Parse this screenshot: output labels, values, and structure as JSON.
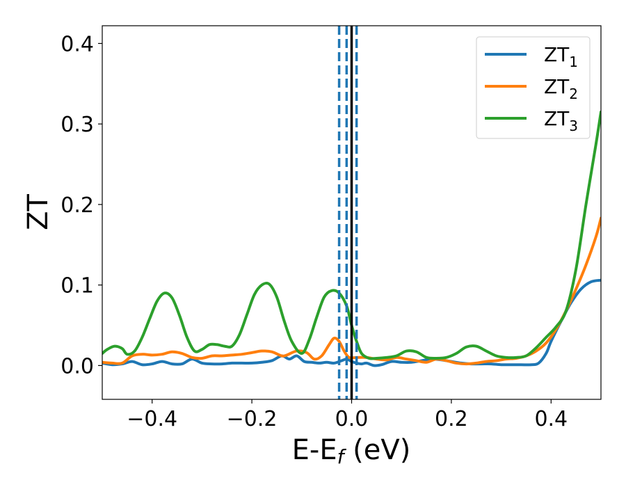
{
  "chart_data": {
    "type": "line",
    "title": "",
    "xlabel": {
      "base": "E-E",
      "sub": "f",
      "suffix": " (eV)"
    },
    "ylabel": "ZT",
    "xlim": [
      -0.5,
      0.5
    ],
    "ylim": [
      -0.042,
      0.422
    ],
    "xticks": [
      -0.4,
      -0.2,
      0.0,
      0.2,
      0.4
    ],
    "xtick_labels": [
      "−0.4",
      "−0.2",
      "0.0",
      "0.2",
      "0.4"
    ],
    "yticks": [
      0.0,
      0.1,
      0.2,
      0.3,
      0.4
    ],
    "ytick_labels": [
      "0.0",
      "0.1",
      "0.2",
      "0.3",
      "0.4"
    ],
    "grid": false,
    "legend_position": "top-right",
    "vlines": [
      {
        "x": -0.025,
        "style": "dashed",
        "color": "#1f77b4"
      },
      {
        "x": -0.01,
        "style": "dashed",
        "color": "#1f77b4"
      },
      {
        "x": 0.01,
        "style": "dashed",
        "color": "#1f77b4"
      },
      {
        "x": 0.0,
        "style": "solid",
        "color": "#000000"
      }
    ],
    "series": [
      {
        "name": "ZT",
        "sub": "1",
        "color": "#1f77b4",
        "points": [
          [
            -0.5,
            0.003
          ],
          [
            -0.48,
            0.001
          ],
          [
            -0.46,
            0.002
          ],
          [
            -0.44,
            0.005
          ],
          [
            -0.42,
            0.001
          ],
          [
            -0.4,
            0.002
          ],
          [
            -0.38,
            0.005
          ],
          [
            -0.36,
            0.002
          ],
          [
            -0.34,
            0.002
          ],
          [
            -0.32,
            0.008
          ],
          [
            -0.3,
            0.003
          ],
          [
            -0.28,
            0.002
          ],
          [
            -0.26,
            0.002
          ],
          [
            -0.24,
            0.003
          ],
          [
            -0.22,
            0.003
          ],
          [
            -0.2,
            0.003
          ],
          [
            -0.18,
            0.004
          ],
          [
            -0.16,
            0.006
          ],
          [
            -0.14,
            0.012
          ],
          [
            -0.125,
            0.008
          ],
          [
            -0.11,
            0.012
          ],
          [
            -0.095,
            0.005
          ],
          [
            -0.08,
            0.004
          ],
          [
            -0.065,
            0.003
          ],
          [
            -0.05,
            0.004
          ],
          [
            -0.035,
            0.003
          ],
          [
            -0.02,
            0.006
          ],
          [
            -0.01,
            0.008
          ],
          [
            0.0,
            0.005
          ],
          [
            0.01,
            0.003
          ],
          [
            0.02,
            0.002
          ],
          [
            0.03,
            0.003
          ],
          [
            0.045,
            0.0
          ],
          [
            0.06,
            0.001
          ],
          [
            0.08,
            0.005
          ],
          [
            0.1,
            0.004
          ],
          [
            0.12,
            0.004
          ],
          [
            0.14,
            0.006
          ],
          [
            0.16,
            0.008
          ],
          [
            0.18,
            0.007
          ],
          [
            0.2,
            0.005
          ],
          [
            0.22,
            0.003
          ],
          [
            0.24,
            0.002
          ],
          [
            0.26,
            0.002
          ],
          [
            0.28,
            0.002
          ],
          [
            0.3,
            0.001
          ],
          [
            0.32,
            0.001
          ],
          [
            0.34,
            0.001
          ],
          [
            0.36,
            0.001
          ],
          [
            0.375,
            0.003
          ],
          [
            0.39,
            0.015
          ],
          [
            0.4,
            0.03
          ],
          [
            0.42,
            0.055
          ],
          [
            0.44,
            0.078
          ],
          [
            0.46,
            0.095
          ],
          [
            0.48,
            0.104
          ],
          [
            0.5,
            0.106
          ]
        ]
      },
      {
        "name": "ZT",
        "sub": "2",
        "color": "#ff7f0e",
        "points": [
          [
            -0.5,
            0.004
          ],
          [
            -0.48,
            0.003
          ],
          [
            -0.46,
            0.003
          ],
          [
            -0.44,
            0.012
          ],
          [
            -0.42,
            0.014
          ],
          [
            -0.4,
            0.013
          ],
          [
            -0.38,
            0.014
          ],
          [
            -0.36,
            0.017
          ],
          [
            -0.34,
            0.015
          ],
          [
            -0.32,
            0.01
          ],
          [
            -0.3,
            0.009
          ],
          [
            -0.28,
            0.012
          ],
          [
            -0.26,
            0.012
          ],
          [
            -0.24,
            0.013
          ],
          [
            -0.22,
            0.014
          ],
          [
            -0.2,
            0.016
          ],
          [
            -0.18,
            0.018
          ],
          [
            -0.16,
            0.017
          ],
          [
            -0.14,
            0.012
          ],
          [
            -0.13,
            0.013
          ],
          [
            -0.11,
            0.018
          ],
          [
            -0.09,
            0.016
          ],
          [
            -0.075,
            0.008
          ],
          [
            -0.06,
            0.012
          ],
          [
            -0.045,
            0.026
          ],
          [
            -0.035,
            0.034
          ],
          [
            -0.025,
            0.03
          ],
          [
            -0.015,
            0.018
          ],
          [
            -0.005,
            0.01
          ],
          [
            0.01,
            0.01
          ],
          [
            0.03,
            0.01
          ],
          [
            0.05,
            0.008
          ],
          [
            0.07,
            0.007
          ],
          [
            0.09,
            0.01
          ],
          [
            0.11,
            0.008
          ],
          [
            0.13,
            0.006
          ],
          [
            0.15,
            0.004
          ],
          [
            0.17,
            0.008
          ],
          [
            0.19,
            0.006
          ],
          [
            0.21,
            0.003
          ],
          [
            0.23,
            0.002
          ],
          [
            0.25,
            0.003
          ],
          [
            0.27,
            0.005
          ],
          [
            0.29,
            0.006
          ],
          [
            0.31,
            0.008
          ],
          [
            0.33,
            0.009
          ],
          [
            0.35,
            0.012
          ],
          [
            0.37,
            0.018
          ],
          [
            0.39,
            0.028
          ],
          [
            0.41,
            0.045
          ],
          [
            0.43,
            0.068
          ],
          [
            0.45,
            0.095
          ],
          [
            0.47,
            0.125
          ],
          [
            0.49,
            0.16
          ],
          [
            0.5,
            0.183
          ]
        ]
      },
      {
        "name": "ZT",
        "sub": "3",
        "color": "#2ca02c",
        "points": [
          [
            -0.5,
            0.015
          ],
          [
            -0.49,
            0.02
          ],
          [
            -0.475,
            0.024
          ],
          [
            -0.46,
            0.021
          ],
          [
            -0.45,
            0.014
          ],
          [
            -0.435,
            0.018
          ],
          [
            -0.42,
            0.035
          ],
          [
            -0.405,
            0.058
          ],
          [
            -0.39,
            0.08
          ],
          [
            -0.375,
            0.09
          ],
          [
            -0.36,
            0.084
          ],
          [
            -0.345,
            0.062
          ],
          [
            -0.33,
            0.035
          ],
          [
            -0.315,
            0.018
          ],
          [
            -0.3,
            0.02
          ],
          [
            -0.285,
            0.026
          ],
          [
            -0.27,
            0.026
          ],
          [
            -0.255,
            0.024
          ],
          [
            -0.24,
            0.024
          ],
          [
            -0.225,
            0.038
          ],
          [
            -0.21,
            0.063
          ],
          [
            -0.195,
            0.088
          ],
          [
            -0.18,
            0.1
          ],
          [
            -0.165,
            0.101
          ],
          [
            -0.15,
            0.085
          ],
          [
            -0.135,
            0.055
          ],
          [
            -0.12,
            0.03
          ],
          [
            -0.1,
            0.015
          ],
          [
            -0.085,
            0.032
          ],
          [
            -0.07,
            0.06
          ],
          [
            -0.055,
            0.085
          ],
          [
            -0.04,
            0.093
          ],
          [
            -0.025,
            0.09
          ],
          [
            -0.01,
            0.074
          ],
          [
            0.0,
            0.05
          ],
          [
            0.01,
            0.03
          ],
          [
            0.02,
            0.015
          ],
          [
            0.035,
            0.009
          ],
          [
            0.05,
            0.009
          ],
          [
            0.07,
            0.01
          ],
          [
            0.09,
            0.012
          ],
          [
            0.11,
            0.018
          ],
          [
            0.13,
            0.017
          ],
          [
            0.15,
            0.01
          ],
          [
            0.17,
            0.009
          ],
          [
            0.19,
            0.01
          ],
          [
            0.21,
            0.015
          ],
          [
            0.23,
            0.023
          ],
          [
            0.25,
            0.024
          ],
          [
            0.27,
            0.018
          ],
          [
            0.29,
            0.012
          ],
          [
            0.31,
            0.01
          ],
          [
            0.33,
            0.01
          ],
          [
            0.35,
            0.012
          ],
          [
            0.37,
            0.022
          ],
          [
            0.39,
            0.035
          ],
          [
            0.41,
            0.048
          ],
          [
            0.43,
            0.068
          ],
          [
            0.45,
            0.12
          ],
          [
            0.47,
            0.2
          ],
          [
            0.49,
            0.275
          ],
          [
            0.5,
            0.315
          ]
        ]
      }
    ]
  }
}
